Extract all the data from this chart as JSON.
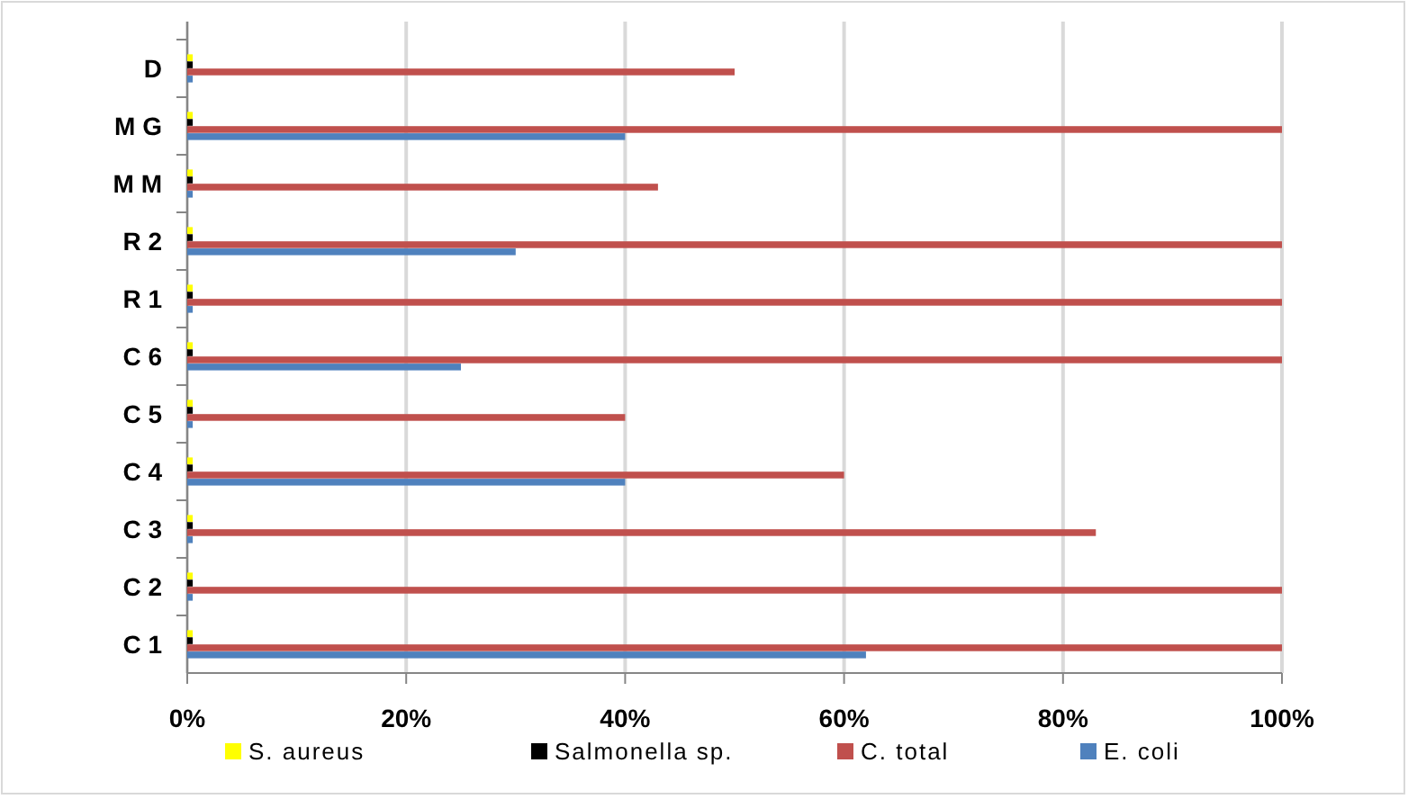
{
  "chart_data": {
    "type": "bar",
    "orientation": "horizontal",
    "categories": [
      "D",
      "M G",
      "M M",
      "R 2",
      "R 1",
      "C 6",
      "C 5",
      "C 4",
      "C 3",
      "C 2",
      "C 1"
    ],
    "series": [
      {
        "name": "S. aureus",
        "color": "#ffff00",
        "values": [
          0.5,
          0.5,
          0.5,
          0.5,
          0.5,
          0.5,
          0.5,
          0.5,
          0.5,
          0.5,
          0.5
        ]
      },
      {
        "name": "Salmonella sp.",
        "color": "#000000",
        "values": [
          0.5,
          0.5,
          0.5,
          0.5,
          0.5,
          0.5,
          0.5,
          0.5,
          0.5,
          0.5,
          0.5
        ]
      },
      {
        "name": "C. total",
        "color": "#c0504d",
        "values": [
          50,
          100,
          43,
          100,
          100,
          100,
          40,
          60,
          83,
          100,
          100
        ]
      },
      {
        "name": "E. coli",
        "color": "#4f81bd",
        "values": [
          0.5,
          40,
          0.5,
          30,
          0.5,
          25,
          0.5,
          40,
          0.5,
          0.5,
          62
        ]
      }
    ],
    "xlim": [
      0,
      100
    ],
    "xticks": [
      {
        "value": 0,
        "label": "0%"
      },
      {
        "value": 20,
        "label": "20%"
      },
      {
        "value": 40,
        "label": "40%"
      },
      {
        "value": 60,
        "label": "60%"
      },
      {
        "value": 80,
        "label": "80%"
      },
      {
        "value": 100,
        "label": "100%"
      }
    ],
    "grid": "x",
    "legend": "bottom"
  }
}
